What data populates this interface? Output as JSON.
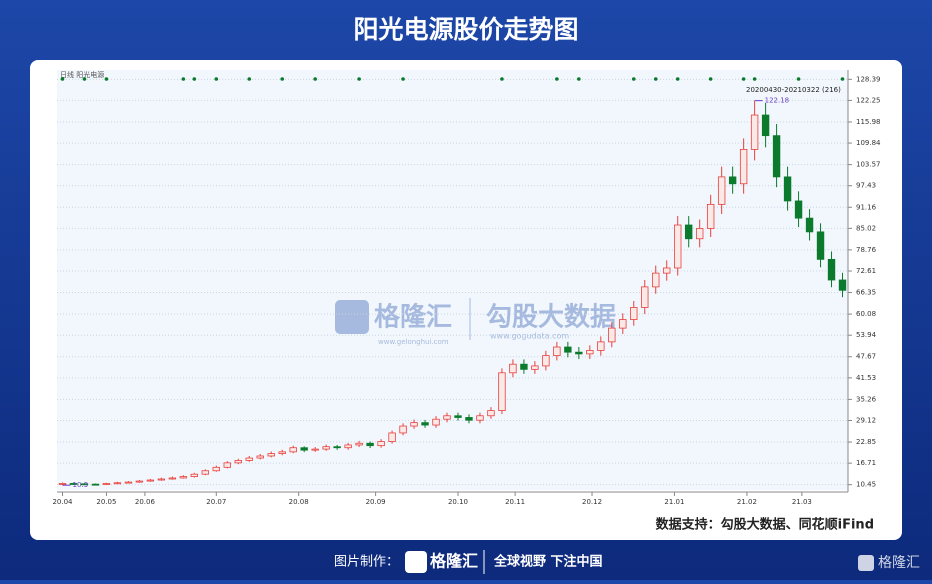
{
  "header": {
    "title": "阳光电源股价走势图"
  },
  "chart_data": {
    "type": "candlestick",
    "label": "日线  阳光电源",
    "range_label": "20200430-20210322 (216)",
    "up_color": "#e8403c",
    "down_color": "#0b7a2c",
    "signal_color": "#0b7a2c",
    "ylim": [
      8.9,
      131.1
    ],
    "yticks": [
      10.45,
      16.71,
      22.85,
      29.12,
      35.26,
      41.53,
      47.67,
      53.94,
      60.08,
      66.35,
      72.61,
      78.76,
      85.02,
      91.16,
      97.43,
      103.57,
      109.84,
      115.98,
      122.25,
      128.39
    ],
    "xlim": [
      -0.5,
      71.5
    ],
    "xticks": [
      {
        "value": 0,
        "label": "20.04"
      },
      {
        "value": 4,
        "label": "20.05"
      },
      {
        "value": 7.5,
        "label": "20.06"
      },
      {
        "value": 14,
        "label": "20.07"
      },
      {
        "value": 21.5,
        "label": "20.08"
      },
      {
        "value": 28.5,
        "label": "20.09"
      },
      {
        "value": 36,
        "label": "20.10"
      },
      {
        "value": 41.2,
        "label": "20.11"
      },
      {
        "value": 48.2,
        "label": "20.12"
      },
      {
        "value": 55.7,
        "label": "21.01"
      },
      {
        "value": 62.3,
        "label": "21.02"
      },
      {
        "value": 67.3,
        "label": "21.03"
      }
    ],
    "grid": true,
    "open": [
      10.6,
      10.8,
      10.7,
      10.6,
      10.5,
      10.8,
      11.0,
      11.2,
      11.5,
      11.8,
      12.1,
      12.4,
      12.8,
      13.5,
      14.5,
      15.5,
      16.8,
      17.5,
      18.2,
      18.8,
      19.5,
      20.0,
      21.2,
      20.5,
      20.8,
      21.5,
      21.2,
      22.0,
      22.5,
      21.8,
      23.0,
      25.5,
      27.5,
      28.5,
      27.8,
      29.5,
      30.5,
      30.0,
      29.2,
      30.5,
      32.0,
      43.0,
      45.5,
      44.0,
      45.0,
      48.0,
      50.5,
      49.0,
      48.5,
      49.5,
      52.0,
      56.0,
      58.5,
      62.0,
      68.0,
      72.0,
      73.5,
      86.0,
      82.0,
      85.0,
      92.0,
      100.0,
      98.0,
      108.0,
      118.0,
      112.0,
      100.0,
      93.0,
      88.0,
      84.0,
      76.0,
      70.0
    ],
    "high": [
      11.1,
      11.0,
      10.9,
      10.8,
      11.0,
      11.3,
      11.5,
      11.8,
      12.1,
      12.5,
      12.8,
      13.2,
      13.9,
      14.9,
      16.0,
      17.3,
      18.0,
      18.8,
      19.4,
      20.1,
      20.6,
      21.8,
      21.6,
      21.4,
      22.1,
      22.0,
      22.6,
      23.2,
      23.0,
      23.7,
      26.2,
      28.3,
      29.4,
      29.3,
      30.4,
      31.4,
      31.4,
      30.9,
      31.4,
      33.0,
      44.3,
      46.9,
      46.9,
      46.4,
      49.4,
      52.0,
      52.0,
      50.5,
      51.0,
      53.6,
      57.7,
      60.3,
      63.9,
      70.0,
      74.2,
      75.7,
      88.6,
      88.6,
      87.6,
      94.8,
      103.0,
      103.0,
      111.2,
      122.18,
      121.5,
      115.4,
      103.0,
      95.8,
      90.6,
      86.5,
      78.3,
      72.1
    ],
    "low": [
      10.3,
      10.39,
      10.4,
      10.4,
      10.4,
      10.7,
      10.9,
      11.0,
      11.3,
      11.6,
      11.9,
      12.2,
      12.5,
      13.2,
      14.2,
      15.2,
      16.4,
      17.1,
      17.8,
      18.4,
      19.0,
      19.6,
      19.9,
      20.0,
      20.3,
      20.6,
      20.6,
      21.4,
      21.1,
      21.2,
      22.4,
      24.8,
      26.7,
      27.0,
      27.0,
      28.6,
      29.1,
      28.3,
      28.3,
      29.6,
      31.0,
      41.7,
      42.7,
      42.7,
      43.7,
      46.6,
      47.5,
      47.0,
      47.0,
      48.0,
      50.4,
      54.3,
      56.7,
      60.1,
      66.0,
      69.8,
      71.3,
      79.5,
      79.5,
      82.5,
      89.2,
      95.1,
      95.1,
      104.8,
      108.6,
      97.0,
      90.2,
      85.4,
      81.5,
      73.7,
      67.9,
      65.0
    ],
    "close": [
      10.8,
      10.7,
      10.6,
      10.5,
      10.8,
      11.0,
      11.2,
      11.5,
      11.8,
      12.1,
      12.4,
      12.8,
      13.5,
      14.5,
      15.5,
      16.8,
      17.5,
      18.2,
      18.8,
      19.5,
      20.0,
      21.2,
      20.5,
      20.8,
      21.5,
      21.2,
      22.0,
      22.5,
      21.8,
      23.0,
      25.5,
      27.5,
      28.5,
      27.8,
      29.5,
      30.5,
      30.0,
      29.2,
      30.5,
      32.0,
      43.0,
      45.5,
      44.0,
      45.0,
      48.0,
      50.5,
      49.0,
      48.5,
      49.5,
      52.0,
      56.0,
      58.5,
      62.0,
      68.0,
      72.0,
      73.5,
      86.0,
      82.0,
      85.0,
      92.0,
      100.0,
      98.0,
      108.0,
      118.0,
      112.0,
      100.0,
      93.0,
      88.0,
      84.0,
      76.0,
      70.0,
      67.0
    ],
    "signals": [
      0,
      2,
      4,
      11,
      12,
      14,
      17,
      20,
      23,
      27,
      31,
      40,
      45,
      47,
      52,
      54,
      56,
      59,
      62,
      63,
      67,
      71
    ]
  },
  "watermark": {
    "left": "格隆汇",
    "left_url": "www.gelonghui.com",
    "right": "勾股大数据",
    "right_url": "www.gogudata.com"
  },
  "source": "数据支持：勾股大数据、同花顺iFind",
  "footer": {
    "label": "图片制作：",
    "brand": "格隆汇",
    "slogan": "全球视野 下注中国",
    "corner": "格隆汇"
  }
}
